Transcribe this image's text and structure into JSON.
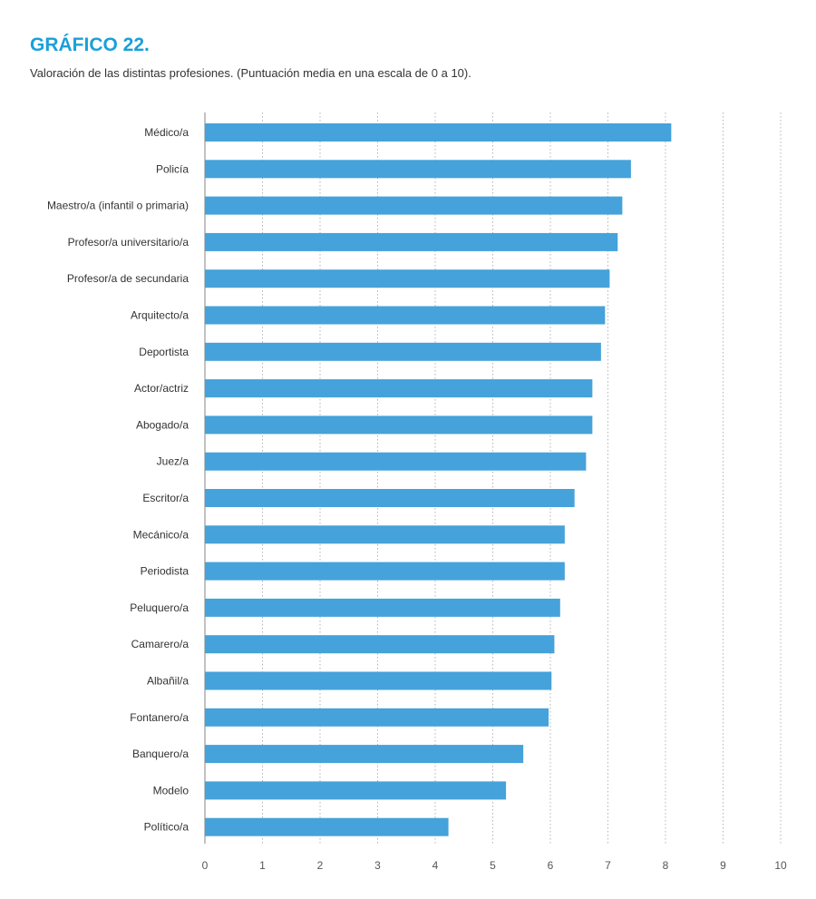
{
  "chart_data": {
    "type": "bar",
    "orientation": "horizontal",
    "title": "GRÁFICO 22.",
    "subtitle": "Valoración de las distintas profesiones. (Puntuación media en una escala de 0 a 10).",
    "categories": [
      "Médico/a",
      "Policía",
      "Maestro/a (infantil o primaria)",
      "Profesor/a universitario/a",
      "Profesor/a de secundaria",
      "Arquitecto/a",
      "Deportista",
      "Actor/actriz",
      "Abogado/a",
      "Juez/a",
      "Escritor/a",
      "Mecánico/a",
      "Periodista",
      "Peluquero/a",
      "Camarero/a",
      "Albañil/a",
      "Fontanero/a",
      "Banquero/a",
      "Modelo",
      "Político/a"
    ],
    "values": [
      8.1,
      7.4,
      7.25,
      7.17,
      7.03,
      6.95,
      6.88,
      6.73,
      6.73,
      6.62,
      6.42,
      6.25,
      6.25,
      6.17,
      6.07,
      6.02,
      5.97,
      5.53,
      5.23,
      4.23
    ],
    "xlim": [
      0,
      10
    ],
    "xticks": [
      0,
      1,
      2,
      3,
      4,
      5,
      6,
      7,
      8,
      9,
      10
    ],
    "gridlines": "vertical dotted",
    "xlabel": "",
    "ylabel": "",
    "bar_color": "#45a2da"
  }
}
